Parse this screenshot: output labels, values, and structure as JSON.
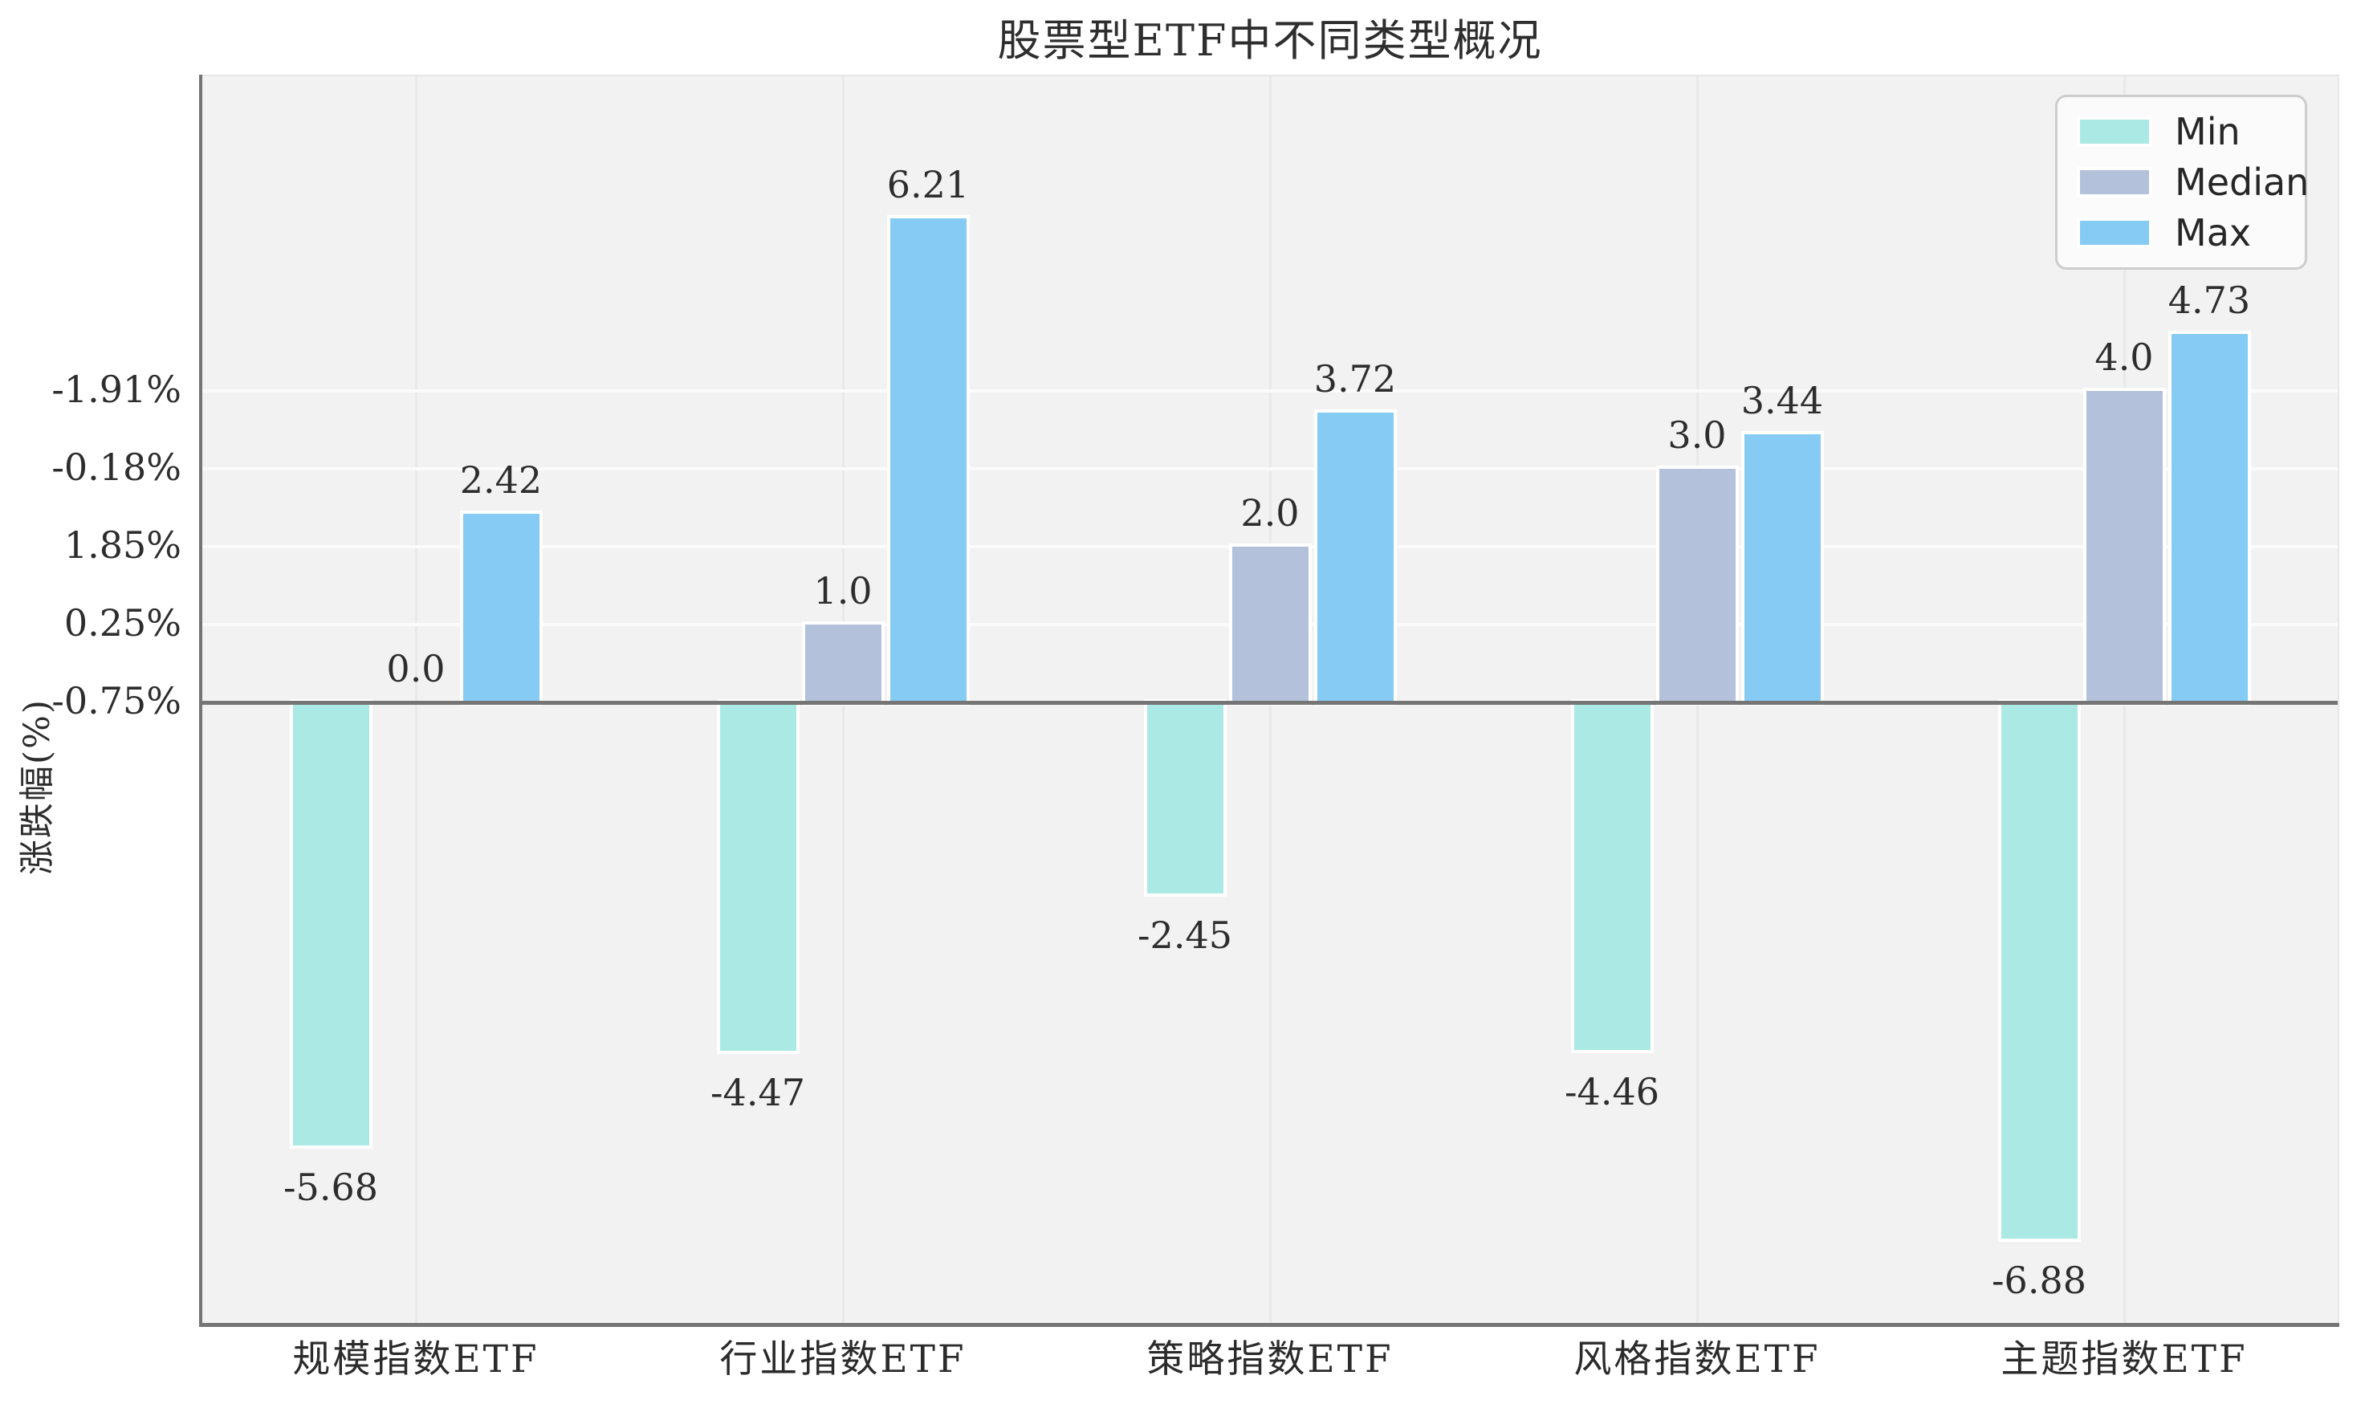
{
  "chart_data": {
    "type": "bar",
    "title": "股票型ETF中不同类型概况",
    "ylabel": "涨跌幅(%)",
    "xlabel": "",
    "categories": [
      "规模指数ETF",
      "行业指数ETF",
      "策略指数ETF",
      "风格指数ETF",
      "主题指数ETF"
    ],
    "series": [
      {
        "name": "Min",
        "color": "#abe9e4",
        "values": [
          -5.68,
          -4.47,
          -2.45,
          -4.46,
          -6.88
        ],
        "labels": [
          "-5.68",
          "-4.47",
          "-2.45",
          "-4.46",
          "-6.88"
        ]
      },
      {
        "name": "Median",
        "color": "#b4c1db",
        "values": [
          0.0,
          1.0,
          2.0,
          3.0,
          4.0
        ],
        "labels": [
          "0.0",
          "1.0",
          "2.0",
          "3.0",
          "4.0"
        ]
      },
      {
        "name": "Max",
        "color": "#85cbf3",
        "values": [
          2.42,
          6.21,
          3.72,
          3.44,
          4.73
        ],
        "labels": [
          "2.42",
          "6.21",
          "3.72",
          "3.44",
          "4.73"
        ]
      }
    ],
    "y_ticks": [
      {
        "value": 4,
        "label": "-1.91%"
      },
      {
        "value": 3,
        "label": "-0.18%"
      },
      {
        "value": 2,
        "label": "1.85%"
      },
      {
        "value": 1,
        "label": "0.25%"
      },
      {
        "value": 0,
        "label": "-0.75%"
      }
    ],
    "ylim": [
      -8.0,
      8.05
    ],
    "grid": {
      "horizontal": "at y_ticks only",
      "vertical": "at category centers",
      "horizontal_color": "#fbfbfb",
      "vertical_color": "#e9e9e9"
    },
    "zero_line": {
      "show": true,
      "color": "#757575"
    },
    "legend": {
      "position": "upper right",
      "entries": [
        "Min",
        "Median",
        "Max"
      ]
    },
    "plot_background": "#f2f2f2",
    "bar_edge_color": "#ffffff"
  }
}
